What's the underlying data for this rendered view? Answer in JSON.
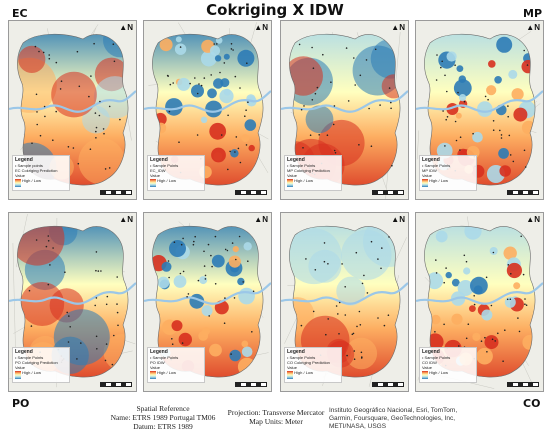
{
  "title": "Cokriging X IDW",
  "corner_labels": {
    "top_left": "EC",
    "top_right": "MP",
    "bottom_left": "PO",
    "bottom_right": "CO"
  },
  "panels": [
    {
      "legend_title": "Legend",
      "sample_label": "Sample points",
      "layer_label": "EC Cokriging Prediction",
      "value_label": "Value",
      "high": "High",
      "low": "Low",
      "pattern": "smooth-ec",
      "north": "N"
    },
    {
      "legend_title": "Legend",
      "sample_label": "Sample Points",
      "layer_label": "EC_IDW",
      "value_label": "Value",
      "high": "High",
      "low": "Low",
      "pattern": "idw-ec",
      "north": "N"
    },
    {
      "legend_title": "Legend",
      "sample_label": "Sample Points",
      "layer_label": "MP Cokriging Prediction",
      "value_label": "Value",
      "high": "High",
      "low": "Low",
      "pattern": "smooth-mp",
      "north": "N"
    },
    {
      "legend_title": "Legend",
      "sample_label": "Sample Points",
      "layer_label": "MP IDW",
      "value_label": "Value",
      "high": "High",
      "low": "Low",
      "pattern": "idw-mp",
      "north": "N"
    },
    {
      "legend_title": "Legend",
      "sample_label": "Sample Points",
      "layer_label": "PO Cokriging Prediction",
      "value_label": "Value",
      "high": "High",
      "low": "Low",
      "pattern": "smooth-po",
      "north": "N"
    },
    {
      "legend_title": "Legend",
      "sample_label": "Sample Points",
      "layer_label": "PO IDW",
      "value_label": "Value",
      "high": "High",
      "low": "Low",
      "pattern": "idw-po",
      "north": "N"
    },
    {
      "legend_title": "Legend",
      "sample_label": "Sample Points",
      "layer_label": "CO Cokriging Prediction",
      "value_label": "Value",
      "high": "High",
      "low": "Low",
      "pattern": "smooth-co",
      "north": "N"
    },
    {
      "legend_title": "Legend",
      "sample_label": "Sample Points",
      "layer_label": "CO IDW",
      "value_label": "Value",
      "high": "High",
      "low": "Low",
      "pattern": "idw-co",
      "north": "N"
    }
  ],
  "footer": {
    "spatial_reference": "Spatial Reference",
    "name": "Name: ETRS 1989 Portugal TM06",
    "datum": "Datum: ETRS 1989",
    "projection": "Projection: Transverse Mercator",
    "map_units": "Map Units: Meter",
    "credits": "Instituto Geográfico Nacional, Esri, TomTom, Garmin, Foursquare, GeoTechnologies, Inc, METI/NASA, USGS"
  },
  "colors": {
    "high": "#d7301f",
    "mid_high": "#fdae61",
    "mid": "#ffffbf",
    "mid_low": "#abd9e9",
    "low": "#2c7bb6"
  }
}
